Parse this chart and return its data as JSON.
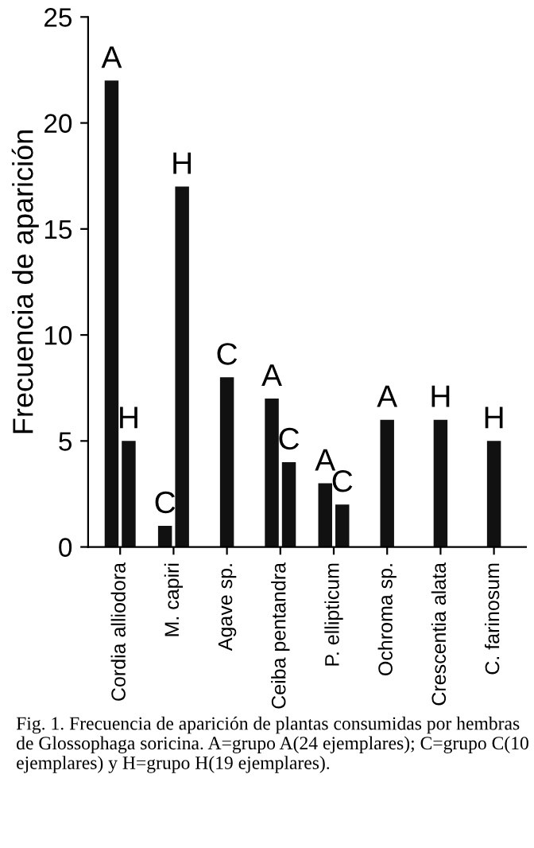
{
  "chart_data": {
    "type": "bar",
    "ylabel": "Frecuencia de aparición",
    "categories": [
      "Cordia alliodora",
      "M. capiri",
      "Agave sp.",
      "Ceiba pentandra",
      "P. ellipticum",
      "Ochroma sp.",
      "Crescentia alata",
      "C. farinosum"
    ],
    "series": [
      {
        "name": "A",
        "color": "#111111",
        "values": [
          22,
          null,
          null,
          7,
          3,
          6,
          null,
          null
        ]
      },
      {
        "name": "C",
        "color": "#111111",
        "values": [
          null,
          1,
          8,
          4,
          2,
          null,
          null,
          null
        ]
      },
      {
        "name": "H",
        "color": "#111111",
        "values": [
          5,
          17,
          null,
          null,
          null,
          null,
          6,
          5
        ]
      }
    ],
    "ylim": [
      0,
      25
    ],
    "yticks": [
      0,
      5,
      10,
      15,
      20,
      25
    ],
    "grid": false,
    "legend": false,
    "annotations": [
      "Fig. 1. Frecuencia de aparición de plantas consumidas por hembras de Glossophaga soricina. A=grupo A(24 ejemplares); C=grupo C(10 ejemplares) y H=grupo H(19 ejemplares)."
    ]
  }
}
